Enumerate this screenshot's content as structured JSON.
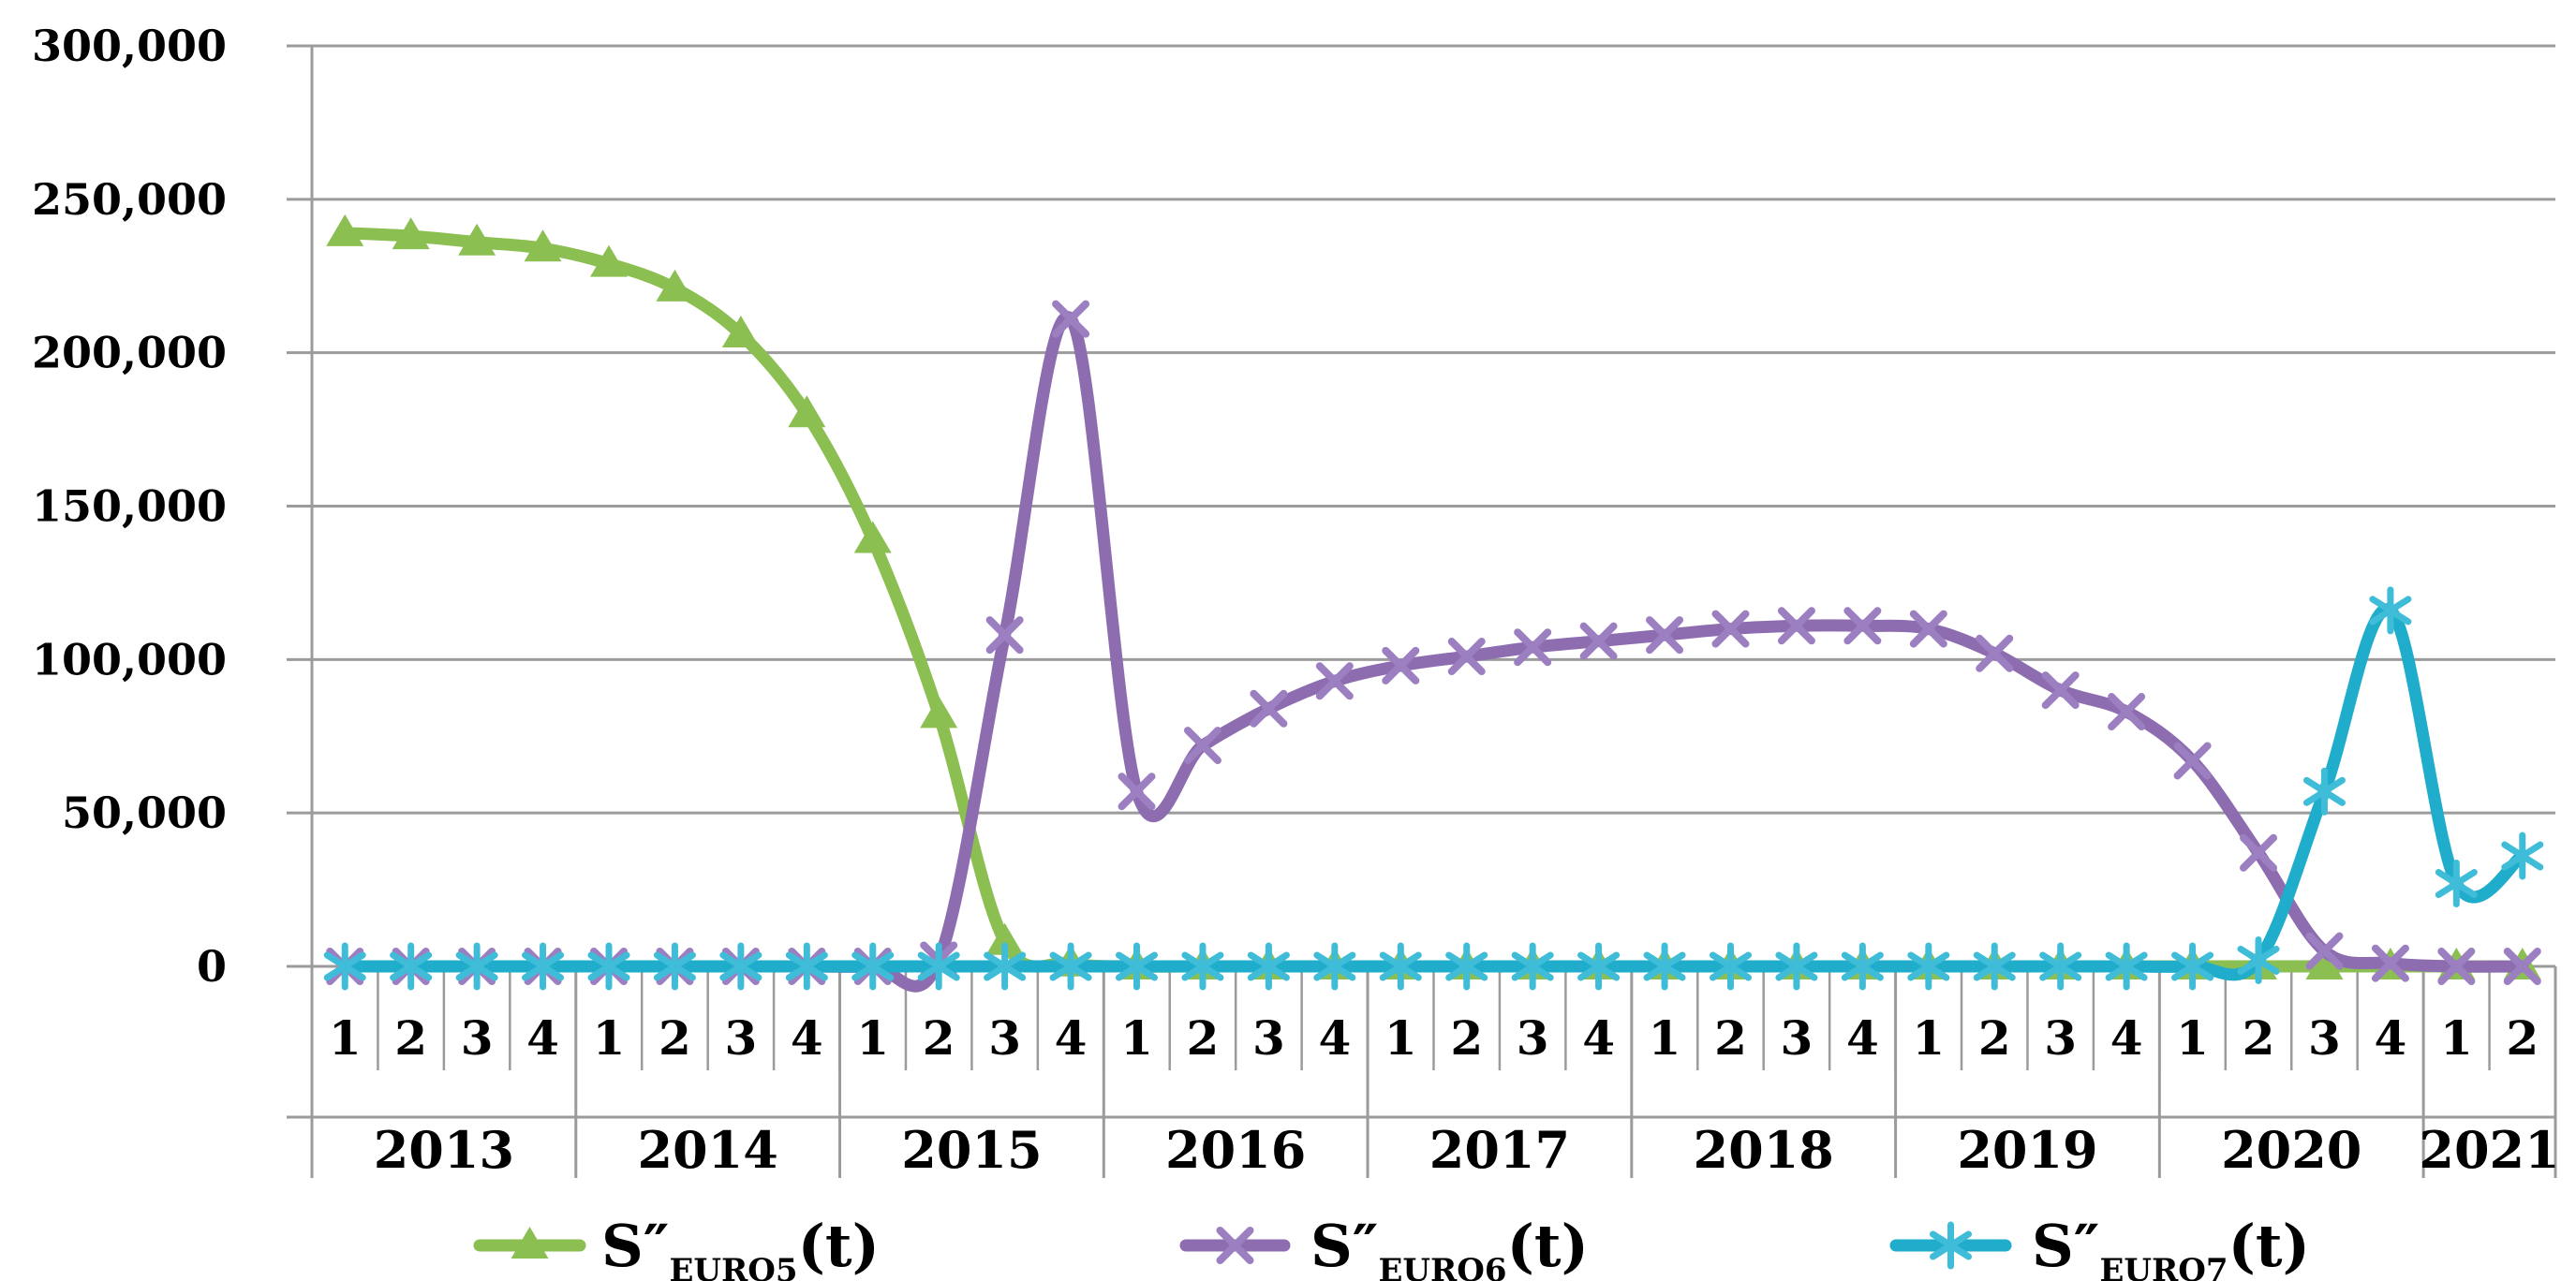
{
  "chart_data": {
    "type": "line",
    "title": "",
    "grid": true,
    "legend_position": "bottom",
    "x_axis": {
      "quarter_labels": [
        "1",
        "2",
        "3",
        "4",
        "1",
        "2",
        "3",
        "4",
        "1",
        "2",
        "3",
        "4",
        "1",
        "2",
        "3",
        "4",
        "1",
        "2",
        "3",
        "4",
        "1",
        "2",
        "3",
        "4",
        "1",
        "2",
        "3",
        "4",
        "1",
        "2",
        "3",
        "4",
        "1",
        "2"
      ],
      "years": [
        {
          "label": "2013",
          "quarters": 4
        },
        {
          "label": "2014",
          "quarters": 4
        },
        {
          "label": "2015",
          "quarters": 4
        },
        {
          "label": "2016",
          "quarters": 4
        },
        {
          "label": "2017",
          "quarters": 4
        },
        {
          "label": "2018",
          "quarters": 4
        },
        {
          "label": "2019",
          "quarters": 4
        },
        {
          "label": "2020",
          "quarters": 4
        },
        {
          "label": "2021",
          "quarters": 2
        }
      ]
    },
    "y_axis": {
      "min": 0,
      "max": 300000,
      "step": 50000,
      "tick_labels": [
        "300,000",
        "250,000",
        "200,000",
        "150,000",
        "100,000",
        "50,000",
        "0"
      ]
    },
    "series": [
      {
        "name": "S″EURO5(t)",
        "legend": {
          "base": "S″",
          "sub": "EURO5",
          "suffix": "(t)"
        },
        "color": "#8CBF52",
        "marker": "triangle",
        "marker_color": "#8CBF52",
        "values": [
          239000,
          238000,
          236000,
          234000,
          229000,
          221000,
          206000,
          180000,
          139000,
          82000,
          8000,
          1000,
          0,
          0,
          0,
          0,
          0,
          0,
          0,
          0,
          0,
          0,
          0,
          0,
          0,
          0,
          0,
          0,
          0,
          0,
          0,
          0,
          0,
          0
        ]
      },
      {
        "name": "S″EURO6(t)",
        "legend": {
          "base": "S″",
          "sub": "EURO6",
          "suffix": "(t)"
        },
        "color": "#8D6CB0",
        "marker": "x",
        "marker_color": "#9C7FC0",
        "values": [
          0,
          0,
          0,
          0,
          0,
          0,
          0,
          0,
          0,
          2000,
          108000,
          211000,
          57000,
          72000,
          84000,
          93000,
          98000,
          101000,
          104000,
          106000,
          108000,
          110000,
          111000,
          111000,
          110000,
          102000,
          90000,
          83000,
          67000,
          37000,
          5000,
          1000,
          0,
          0
        ]
      },
      {
        "name": "S″EURO7(t)",
        "legend": {
          "base": "S″",
          "sub": "EURO7",
          "suffix": "(t)"
        },
        "color": "#1FADCB",
        "marker": "asterisk",
        "marker_color": "#3FBCD8",
        "values": [
          0,
          0,
          0,
          0,
          0,
          0,
          0,
          0,
          0,
          0,
          0,
          0,
          0,
          0,
          0,
          0,
          0,
          0,
          0,
          0,
          0,
          0,
          0,
          0,
          0,
          0,
          0,
          0,
          0,
          2000,
          57000,
          116000,
          27000,
          36000
        ]
      }
    ],
    "colors": {
      "grid": "#9B9B9B",
      "axis": "#8C8C8C",
      "background": "#FFFFFF",
      "text": "#000000"
    }
  }
}
